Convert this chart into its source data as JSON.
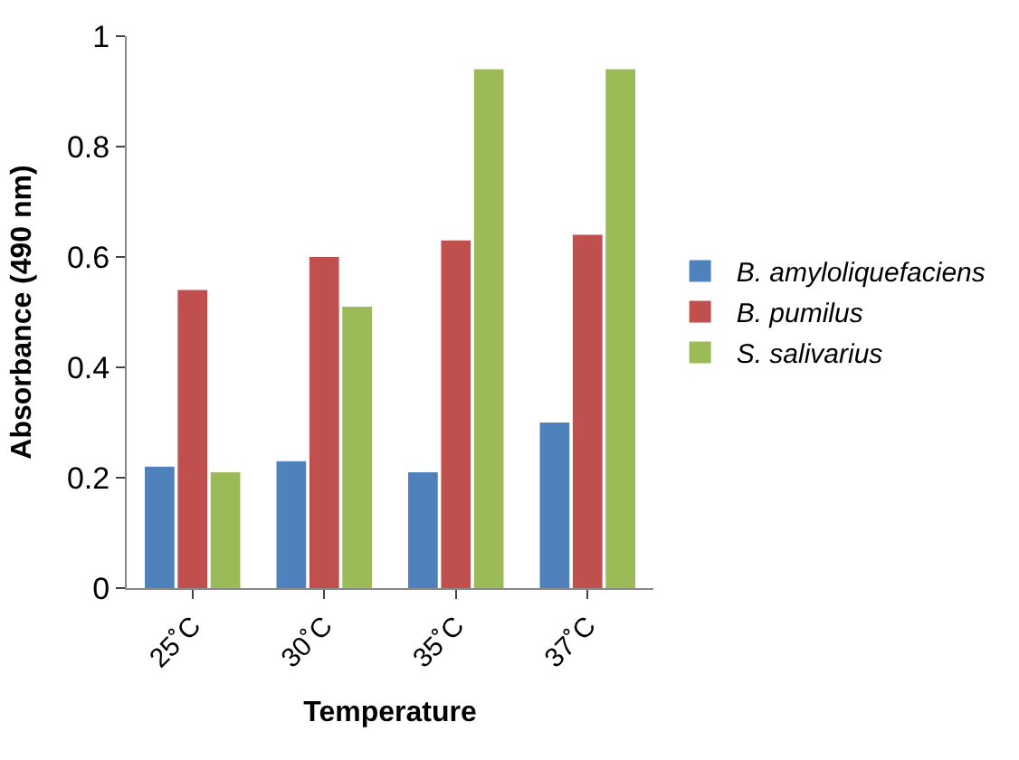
{
  "chart_data": {
    "type": "bar",
    "xlabel": "Temperature",
    "ylabel": "Absorbance (490 nm)",
    "categories": [
      "25˚C",
      "30˚C",
      "35˚C",
      "37˚C"
    ],
    "series": [
      {
        "name": "B. amyloliquefaciens",
        "color": "#4f81bd",
        "values": [
          0.22,
          0.23,
          0.21,
          0.3
        ]
      },
      {
        "name": "B. pumilus",
        "color": "#c0504d",
        "values": [
          0.54,
          0.6,
          0.63,
          0.64
        ]
      },
      {
        "name": "S. salivarius",
        "color": "#9bbb59",
        "values": [
          0.21,
          0.51,
          0.94,
          0.94
        ]
      }
    ],
    "ylim": [
      0,
      1
    ],
    "yticks": [
      0,
      0.2,
      0.4,
      0.6,
      0.8,
      {
        "value": 1,
        "label": "1"
      }
    ],
    "legend": "right"
  }
}
